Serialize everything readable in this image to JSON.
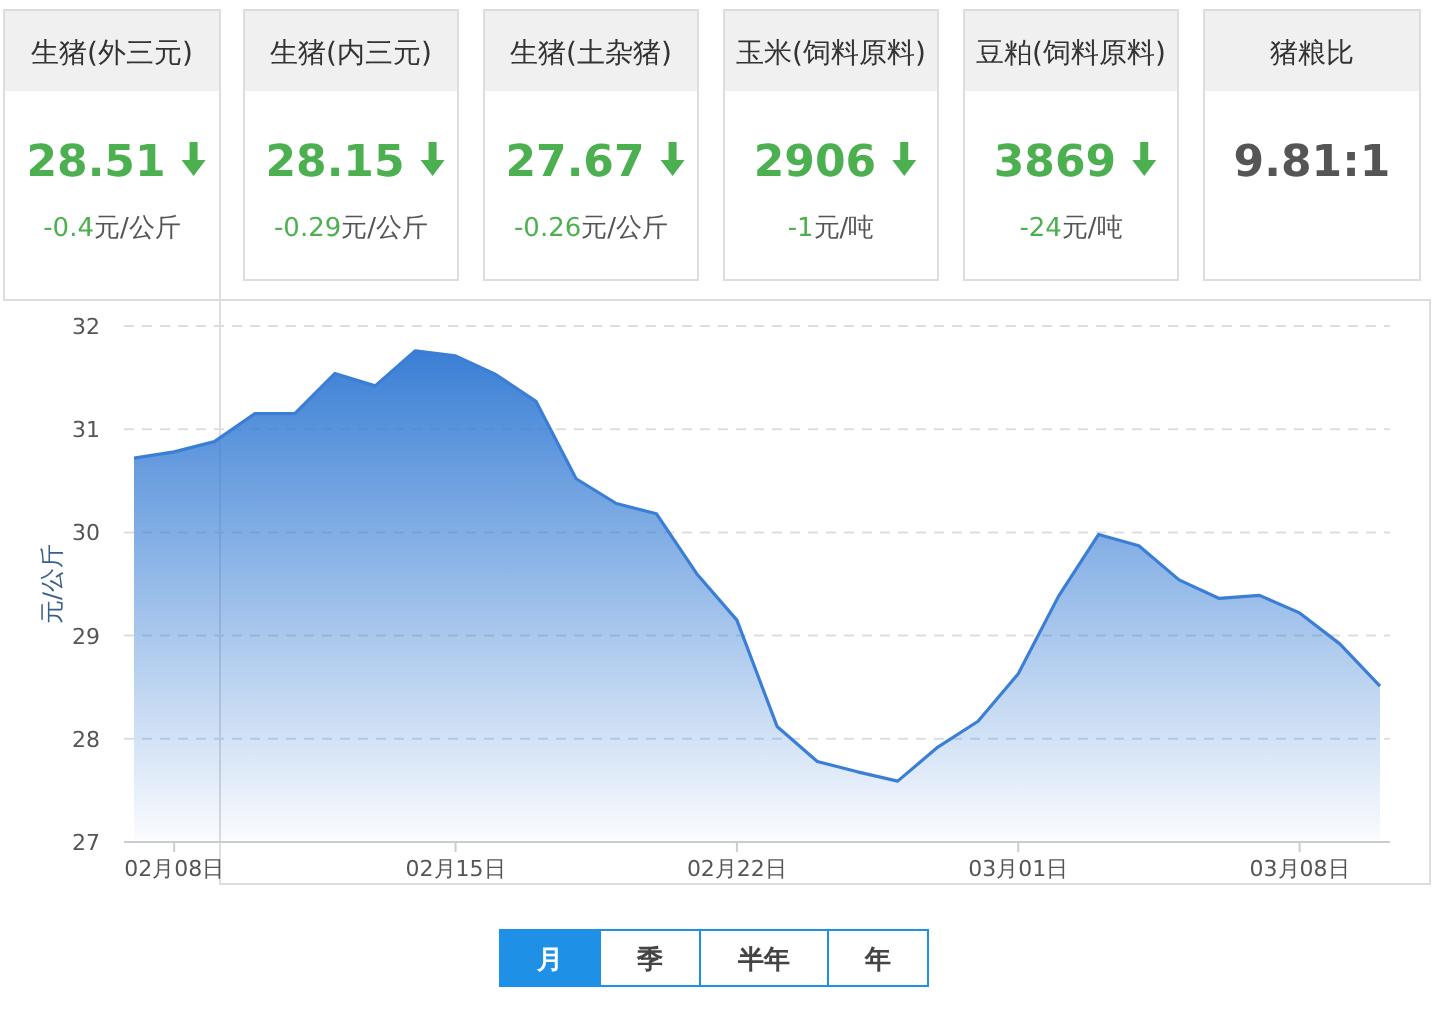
{
  "chart_data": [
    {
      "type": "other",
      "title": "生猪(外三元)",
      "annotations": [
        "28.51",
        "-0.4元/公斤"
      ],
      "color": "#4caf50"
    },
    {
      "type": "other",
      "title": "生猪(内三元)",
      "annotations": [
        "28.15",
        "-0.29元/公斤"
      ],
      "color": "#4caf50"
    },
    {
      "type": "other",
      "title": "生猪(土杂猪)",
      "annotations": [
        "27.67",
        "-0.26元/公斤"
      ],
      "color": "#4caf50"
    },
    {
      "type": "other",
      "title": "玉米(饲料原料)",
      "annotations": [
        "2906",
        "-1元/吨"
      ],
      "color": "#4caf50"
    },
    {
      "type": "other",
      "title": "豆粕(饲料原料)",
      "annotations": [
        "3869",
        "-24元/吨"
      ],
      "color": "#4caf50"
    },
    {
      "type": "other",
      "title": "猪粮比",
      "annotations": [
        "9.81:1"
      ],
      "color": "#555555"
    },
    {
      "type": "area",
      "ylabel": "元/公斤",
      "color": "#3a7fd5",
      "grid": "y",
      "marker": "none",
      "line_style": "solid",
      "categories": [
        null,
        "02月08日",
        null,
        null,
        null,
        null,
        null,
        null,
        "02月15日",
        null,
        null,
        null,
        null,
        null,
        null,
        "02月22日",
        null,
        null,
        null,
        null,
        null,
        null,
        "03月01日",
        null,
        null,
        null,
        null,
        null,
        null,
        "03月08日",
        null,
        null
      ],
      "values": [
        30.72,
        30.78,
        30.88,
        31.15,
        31.15,
        31.54,
        31.42,
        31.76,
        31.71,
        31.53,
        31.27,
        30.52,
        30.28,
        30.18,
        29.6,
        29.15,
        28.12,
        27.78,
        27.68,
        27.59,
        27.92,
        28.17,
        28.63,
        29.38,
        29.98,
        29.87,
        29.54,
        29.36,
        29.39,
        29.22,
        28.92,
        28.51
      ],
      "ylim": [
        27,
        32
      ],
      "yticks": [
        27,
        28,
        29,
        30,
        31,
        32
      ]
    },
    {
      "type": "other",
      "annotations": [
        "月",
        "季",
        "半年",
        "年"
      ],
      "color": "#1e90e6"
    }
  ]
}
